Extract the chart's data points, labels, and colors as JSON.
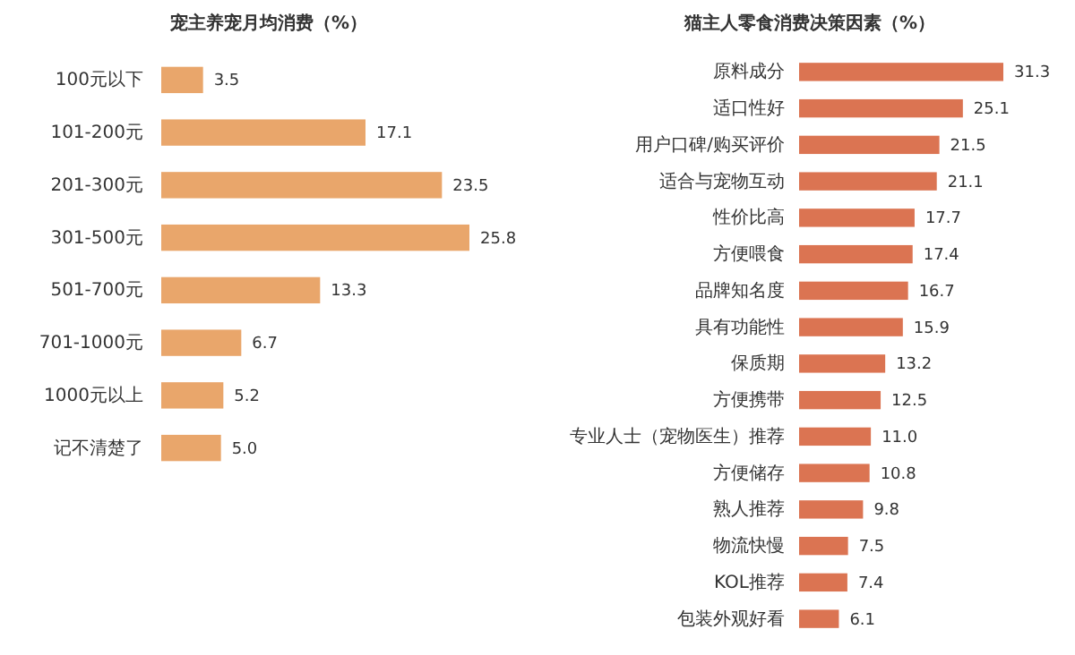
{
  "chart_data": [
    {
      "type": "bar",
      "orientation": "horizontal",
      "title": "宠主养宠月均消费（%）",
      "color": "#e9a66b",
      "categories": [
        "100元以下",
        "101-200元",
        "201-300元",
        "301-500元",
        "501-700元",
        "701-1000元",
        "1000元以上",
        "记不清楚了"
      ],
      "values": [
        3.5,
        17.1,
        23.5,
        25.8,
        13.3,
        6.7,
        5.2,
        5.0
      ],
      "value_labels": [
        "3.5",
        "17.1",
        "23.5",
        "25.8",
        "13.3",
        "6.7",
        "5.2",
        "5.0"
      ]
    },
    {
      "type": "bar",
      "orientation": "horizontal",
      "title": "猫主人零食消费决策因素（%）",
      "color": "#db7452",
      "categories": [
        "原料成分",
        "适口性好",
        "用户口碑/购买评价",
        "适合与宠物互动",
        "性价比高",
        "方便喂食",
        "品牌知名度",
        "具有功能性",
        "保质期",
        "方便携带",
        "专业人士（宠物医生）推荐",
        "方便储存",
        "熟人推荐",
        "物流快慢",
        "KOL推荐",
        "包装外观好看"
      ],
      "values": [
        31.3,
        25.1,
        21.5,
        21.1,
        17.7,
        17.4,
        16.7,
        15.9,
        13.2,
        12.5,
        11.0,
        10.8,
        9.8,
        7.5,
        7.4,
        6.1
      ],
      "value_labels": [
        "31.3",
        "25.1",
        "21.5",
        "21.1",
        "17.7",
        "17.4",
        "16.7",
        "15.9",
        "13.2",
        "12.5",
        "11.0",
        "10.8",
        "9.8",
        "7.5",
        "7.4",
        "6.1"
      ]
    }
  ]
}
